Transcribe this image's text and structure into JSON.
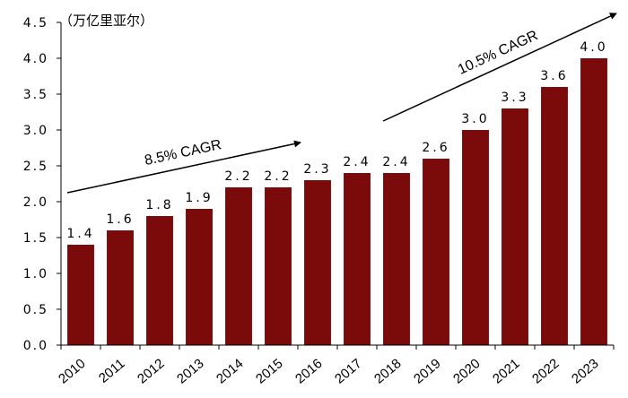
{
  "chart_data": {
    "type": "bar",
    "unit_label": "（万亿里亚尔）",
    "categories": [
      "2010",
      "2011",
      "2012",
      "2013",
      "2014",
      "2015",
      "2016",
      "2017",
      "2018",
      "2019",
      "2020",
      "2021",
      "2022",
      "2023"
    ],
    "values": [
      1.4,
      1.6,
      1.8,
      1.9,
      2.2,
      2.2,
      2.3,
      2.4,
      2.4,
      2.6,
      3.0,
      3.3,
      3.6,
      4.0
    ],
    "value_labels": [
      "1.4",
      "1.6",
      "1.8",
      "1.9",
      "2.2",
      "2.2",
      "2.3",
      "2.4",
      "2.4",
      "2.6",
      "3.0",
      "3.3",
      "3.6",
      "4.0"
    ],
    "y_ticks": [
      "0.0",
      "0.5",
      "1.0",
      "1.5",
      "2.0",
      "2.5",
      "3.0",
      "3.5",
      "4.0",
      "4.5"
    ],
    "ylim": [
      0,
      4.5
    ],
    "bar_color": "#7b0a0a",
    "grid": false,
    "annotations": [
      {
        "text": "8.5% CAGR",
        "from_category": "2010",
        "to_category": "2015"
      },
      {
        "text": "10.5% CAGR",
        "from_category": "2018",
        "to_category": "2023"
      }
    ]
  }
}
